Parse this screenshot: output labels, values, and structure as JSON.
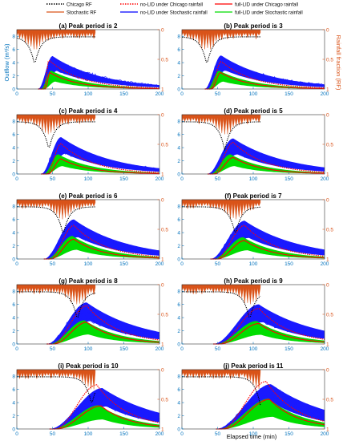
{
  "chart_data": {
    "type": "line",
    "legend": {
      "placement": "top",
      "entries": [
        {
          "label": "Chicago RF",
          "color": "#000000",
          "style": "dotted"
        },
        {
          "label": "Stochastic RF",
          "color": "#D95319",
          "style": "solid"
        },
        {
          "label": "no-LID under Chicago rainfall",
          "color": "#FF0000",
          "style": "dotted"
        },
        {
          "label": "no-LID under Stochastic rainfall",
          "color": "#0000FF",
          "style": "solid"
        },
        {
          "label": "full-LID under Chicago rainfall",
          "color": "#FF0000",
          "style": "solid"
        },
        {
          "label": "full-LID under Stochastic rainfall",
          "color": "#00DD00",
          "style": "solid"
        }
      ]
    },
    "ylabel_left": "Outflow (m³/s)",
    "ylabel_right": "Rainfall fraction (RF)",
    "xlabel": "Elapsed time (min)",
    "xlim": [
      0,
      200
    ],
    "xticks": [
      0,
      50,
      100,
      150,
      200
    ],
    "ylim_left": [
      0,
      9
    ],
    "yticks_left": [
      0,
      2,
      4,
      6,
      8
    ],
    "ylim_right": [
      1,
      0
    ],
    "yticks_right": [
      "0",
      "0.5",
      "1"
    ],
    "panels": [
      {
        "title": "(a) Peak period is 2",
        "chicago_peak": [
          25,
          0.2
        ],
        "nolid_chicago_peak": [
          45,
          4.4
        ],
        "nolid_stoch_max": [
          50,
          5.0
        ],
        "full_chicago_peak": [
          46,
          2.5
        ],
        "full_stoch_max": [
          48,
          2.8
        ]
      },
      {
        "title": "(b) Peak period is 3",
        "chicago_peak": [
          35,
          0.2
        ],
        "nolid_chicago_peak": [
          55,
          4.2
        ],
        "nolid_stoch_max": [
          55,
          5.1
        ],
        "full_chicago_peak": [
          54,
          2.5
        ],
        "full_stoch_max": [
          52,
          2.8
        ]
      },
      {
        "title": "(c) Peak period is 4",
        "chicago_peak": [
          45,
          0.3
        ],
        "nolid_chicago_peak": [
          62,
          4.6
        ],
        "nolid_stoch_max": [
          62,
          5.6
        ],
        "full_chicago_peak": [
          62,
          2.3
        ],
        "full_stoch_max": [
          58,
          3.0
        ]
      },
      {
        "title": "(d) Peak period is 5",
        "chicago_peak": [
          60,
          0.3
        ],
        "nolid_chicago_peak": [
          72,
          4.8
        ],
        "nolid_stoch_max": [
          72,
          5.4
        ],
        "full_chicago_peak": [
          72,
          2.5
        ],
        "full_stoch_max": [
          68,
          3.0
        ]
      },
      {
        "title": "(e) Peak period is 6",
        "chicago_peak": [
          65,
          0.3
        ],
        "nolid_chicago_peak": [
          80,
          5.1
        ],
        "nolid_stoch_max": [
          80,
          6.0
        ],
        "full_chicago_peak": [
          80,
          3.0
        ],
        "full_stoch_max": [
          78,
          3.5
        ]
      },
      {
        "title": "(f) Peak period is 7",
        "chicago_peak": [
          75,
          0.3
        ],
        "nolid_chicago_peak": [
          88,
          5.1
        ],
        "nolid_stoch_max": [
          88,
          5.8
        ],
        "full_chicago_peak": [
          88,
          2.8
        ],
        "full_stoch_max": [
          86,
          3.3
        ]
      },
      {
        "title": "(g) Peak period is 8",
        "chicago_peak": [
          85,
          0.3
        ],
        "nolid_chicago_peak": [
          98,
          5.8
        ],
        "nolid_stoch_max": [
          98,
          6.3
        ],
        "full_chicago_peak": [
          98,
          3.3
        ],
        "full_stoch_max": [
          95,
          3.6
        ]
      },
      {
        "title": "(h) Peak period is 9",
        "chicago_peak": [
          95,
          0.3
        ],
        "nolid_chicago_peak": [
          108,
          5.4
        ],
        "nolid_stoch_max": [
          108,
          6.0
        ],
        "full_chicago_peak": [
          108,
          3.1
        ],
        "full_stoch_max": [
          105,
          3.5
        ]
      },
      {
        "title": "(i) Peak period is 10",
        "chicago_peak": [
          105,
          0.3
        ],
        "nolid_chicago_peak": [
          112,
          6.7
        ],
        "nolid_stoch_max": [
          120,
          6.2
        ],
        "full_chicago_peak": [
          118,
          3.5
        ],
        "full_stoch_max": [
          115,
          3.6
        ]
      },
      {
        "title": "(j) Peak period is 11",
        "chicago_peak": [
          110,
          0.2
        ],
        "nolid_chicago_peak": [
          118,
          7.2
        ],
        "nolid_stoch_max": [
          125,
          6.8
        ],
        "full_chicago_peak": [
          123,
          4.5
        ],
        "full_stoch_max": [
          122,
          4.6
        ]
      }
    ]
  }
}
